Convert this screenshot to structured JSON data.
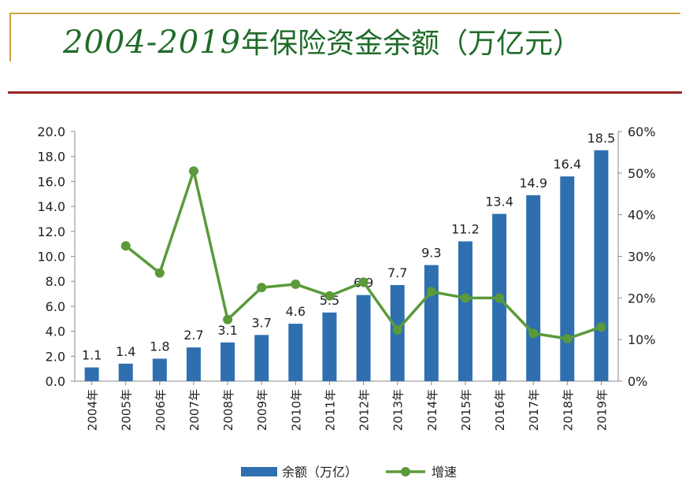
{
  "title": {
    "years_text": "2004-2019",
    "rest_text": "年保险资金余额（万亿元）"
  },
  "chart_data": {
    "type": "bar",
    "categories": [
      "2004年",
      "2005年",
      "2006年",
      "2007年",
      "2008年",
      "2009年",
      "2010年",
      "2011年",
      "2012年",
      "2013年",
      "2014年",
      "2015年",
      "2016年",
      "2017年",
      "2018年",
      "2019年"
    ],
    "series": [
      {
        "name": "余额（万亿）",
        "type": "bar",
        "axis": "left",
        "color": "#2f6fb0",
        "values": [
          1.1,
          1.4,
          1.8,
          2.7,
          3.1,
          3.7,
          4.6,
          5.5,
          6.9,
          7.7,
          9.3,
          11.2,
          13.4,
          14.9,
          16.4,
          18.5
        ],
        "labels": [
          "1.1",
          "1.4",
          "1.8",
          "2.7",
          "3.1",
          "3.7",
          "4.6",
          "5.5",
          "6.9",
          "7.7",
          "9.3",
          "11.2",
          "13.4",
          "14.9",
          "16.4",
          "18.5"
        ]
      },
      {
        "name": "增速",
        "type": "line",
        "axis": "right",
        "color": "#5a9a3a",
        "values": [
          null,
          32.5,
          26.0,
          50.5,
          14.8,
          22.5,
          23.3,
          20.5,
          23.8,
          12.3,
          21.5,
          20.0,
          20.0,
          11.5,
          10.2,
          13.0
        ]
      }
    ],
    "y_left": {
      "ylim": [
        0,
        20
      ],
      "ticks": [
        "0.0",
        "2.0",
        "4.0",
        "6.0",
        "8.0",
        "10.0",
        "12.0",
        "14.0",
        "16.0",
        "18.0",
        "20.0"
      ]
    },
    "y_right": {
      "ylim": [
        0,
        60
      ],
      "ticks": [
        "0%",
        "10%",
        "20%",
        "30%",
        "40%",
        "50%",
        "60%"
      ]
    },
    "grid": false,
    "legend_position": "bottom"
  }
}
